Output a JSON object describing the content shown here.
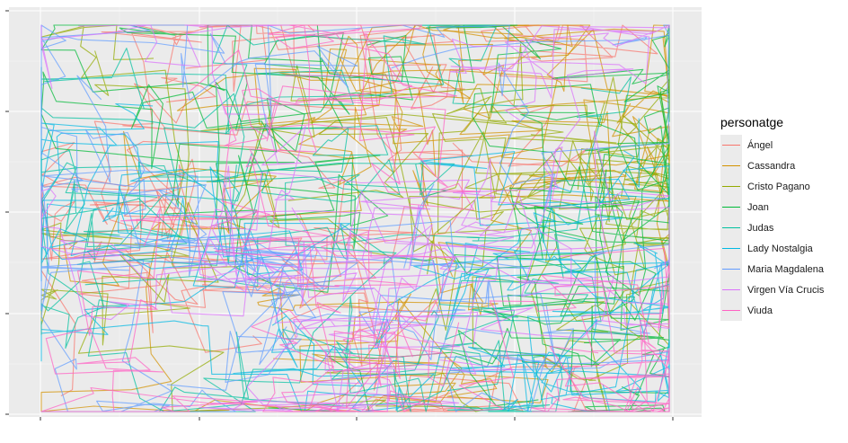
{
  "chart_data": {
    "type": "line",
    "title": "",
    "xlabel": "",
    "ylabel": "",
    "grid": true,
    "x_ticks_labels": [],
    "y_ticks_labels": [],
    "legend": {
      "title": "personatge",
      "placement": "right"
    },
    "series": [
      {
        "name": "Ángel",
        "color": "#F8766D"
      },
      {
        "name": "Cassandra",
        "color": "#D39200"
      },
      {
        "name": "Cristo Pagano",
        "color": "#93AA00"
      },
      {
        "name": "Joan",
        "color": "#00BA38"
      },
      {
        "name": "Judas",
        "color": "#00C19F"
      },
      {
        "name": "Lady Nostalgia",
        "color": "#00B9E3"
      },
      {
        "name": "Maria Magdalena",
        "color": "#619CFF"
      },
      {
        "name": "Virgen Vía Crucis",
        "color": "#DB72FB"
      },
      {
        "name": "Viuda",
        "color": "#FF61C3"
      }
    ]
  }
}
